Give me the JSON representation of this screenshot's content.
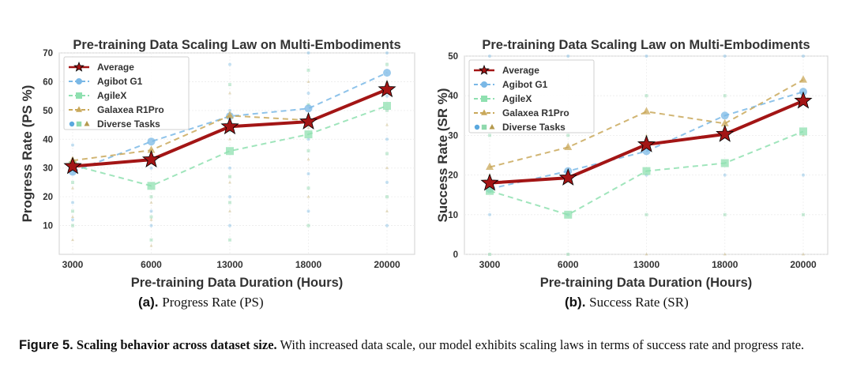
{
  "chart_data": [
    {
      "type": "line",
      "title": "Pre-training Data Scaling Law on Multi-Embodiments",
      "xlabel": "Pre-training Data Duration (Hours)",
      "ylabel": "Progress Rate (PS %)",
      "categories": [
        "3000",
        "6000",
        "13000",
        "18000",
        "20000"
      ],
      "ylim": [
        0,
        70
      ],
      "yticks": [
        10,
        20,
        30,
        40,
        50,
        60,
        70
      ],
      "grid": true,
      "legend_position": "top-left",
      "series": [
        {
          "name": "Average",
          "color": "#a31515",
          "marker": "star",
          "style": "solid",
          "values": [
            30.6,
            32.9,
            44.4,
            46.1,
            57.3
          ]
        },
        {
          "name": "Agibot G1",
          "color": "#7ab8e6",
          "marker": "circle",
          "style": "dashed",
          "values": [
            28.7,
            39.2,
            48.0,
            50.7,
            63.1
          ]
        },
        {
          "name": "AgileX",
          "color": "#8fe0b0",
          "marker": "square",
          "style": "dashed",
          "values": [
            31.0,
            23.8,
            35.9,
            41.7,
            51.6
          ]
        },
        {
          "name": "Galaxea R1Pro",
          "color": "#c9a85a",
          "marker": "triangle",
          "style": "dashed",
          "values": [
            32.6,
            36.2,
            48.2,
            46.6,
            null
          ]
        }
      ],
      "scatter_legend": "Diverse Tasks",
      "diverse_tasks": [
        {
          "x": "3000",
          "values": [
            38,
            25,
            23,
            18,
            15,
            13,
            12,
            10,
            5
          ]
        },
        {
          "x": "6000",
          "values": [
            30,
            20,
            18,
            15,
            13,
            12,
            10,
            5,
            3
          ]
        },
        {
          "x": "13000",
          "values": [
            66,
            59,
            56,
            50,
            43,
            40,
            30,
            27,
            25,
            20,
            18,
            15,
            10,
            5
          ]
        },
        {
          "x": "18000",
          "values": [
            70,
            64,
            60,
            56,
            52,
            44,
            40,
            36,
            33,
            28,
            23,
            20,
            15,
            10
          ]
        },
        {
          "x": "20000",
          "values": [
            70,
            66,
            60,
            55,
            50,
            45,
            40,
            35,
            30,
            25,
            20,
            15,
            10
          ]
        }
      ],
      "subcaption_tag": "(a).",
      "subcaption_text": "Progress Rate (PS)"
    },
    {
      "type": "line",
      "title": "Pre-training Data Scaling Law on Multi-Embodiments",
      "xlabel": "Pre-training Data Duration (Hours)",
      "ylabel": "Success Rate (SR %)",
      "categories": [
        "3000",
        "6000",
        "13000",
        "18000",
        "20000"
      ],
      "ylim": [
        0,
        50
      ],
      "yticks": [
        0,
        10,
        20,
        30,
        40,
        50
      ],
      "grid": true,
      "legend_position": "top-left",
      "series": [
        {
          "name": "Average",
          "color": "#a31515",
          "marker": "star",
          "style": "solid",
          "values": [
            18.0,
            19.3,
            27.7,
            30.3,
            38.7
          ]
        },
        {
          "name": "Agibot G1",
          "color": "#7ab8e6",
          "marker": "circle",
          "style": "dashed",
          "values": [
            16.5,
            21.0,
            26.0,
            35.0,
            41.0
          ]
        },
        {
          "name": "AgileX",
          "color": "#8fe0b0",
          "marker": "square",
          "style": "dashed",
          "values": [
            16.0,
            10.0,
            21.0,
            23.0,
            31.0
          ]
        },
        {
          "name": "Galaxea R1Pro",
          "color": "#c9a85a",
          "marker": "triangle",
          "style": "dashed",
          "values": [
            22.0,
            27.0,
            36.0,
            33.0,
            44.0
          ]
        }
      ],
      "scatter_legend": "Diverse Tasks",
      "diverse_tasks": [
        {
          "x": "3000",
          "values": [
            50,
            30,
            20,
            10,
            0
          ]
        },
        {
          "x": "6000",
          "values": [
            50,
            30,
            20,
            10,
            0
          ]
        },
        {
          "x": "13000",
          "values": [
            50,
            40,
            30,
            20,
            10,
            0
          ]
        },
        {
          "x": "18000",
          "values": [
            50,
            40,
            30,
            20,
            10,
            0
          ]
        },
        {
          "x": "20000",
          "values": [
            50,
            40,
            30,
            20,
            10,
            0
          ]
        }
      ],
      "subcaption_tag": "(b).",
      "subcaption_text": "Success Rate (SR)"
    }
  ],
  "caption": {
    "label": "Figure 5.",
    "bold": "Scaling behavior across dataset size.",
    "text": "With increased data scale, our model exhibits scaling laws in terms of success rate and progress rate."
  }
}
